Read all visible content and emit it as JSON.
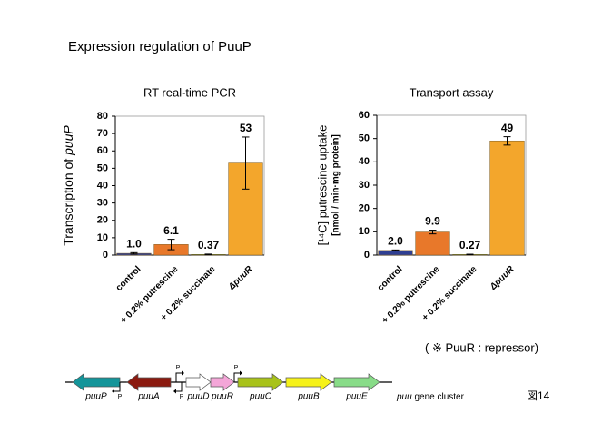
{
  "title": "Expression regulation of PuuP",
  "chart_data": [
    {
      "type": "bar",
      "title": "RT real-time PCR",
      "ylabel": [
        "Transcription of ",
        "puuP"
      ],
      "categories": [
        "control",
        "+ 0.2% putrescine",
        "+ 0.2% succinate",
        "ΔpuuR"
      ],
      "values": [
        1.0,
        6.1,
        0.37,
        53
      ],
      "value_labels": [
        "1.0",
        "6.1",
        "0.37",
        "53"
      ],
      "errors": [
        0.4,
        3,
        0.2,
        15
      ],
      "colors": [
        "#2f3f92",
        "#e8782a",
        "#2a8c3c",
        "#f3a62c"
      ],
      "ylim": [
        0,
        80
      ],
      "yticks": [
        0,
        10,
        20,
        30,
        40,
        50,
        60,
        70,
        80
      ]
    },
    {
      "type": "bar",
      "title": "Transport assay",
      "ylabel": [
        "[¹⁴C] putrescine uptake",
        "[nmol / min·mg protein]"
      ],
      "categories": [
        "control",
        "+ 0.2% putrescine",
        "+ 0.2% succinate",
        "ΔpuuR"
      ],
      "values": [
        2.0,
        9.9,
        0.27,
        49
      ],
      "value_labels": [
        "2.0",
        "9.9",
        "0.27",
        "49"
      ],
      "errors": [
        0.2,
        0.8,
        0.1,
        1.8
      ],
      "colors": [
        "#2f3f92",
        "#e8782a",
        "#2a8c3c",
        "#f3a62c"
      ],
      "ylim": [
        0,
        60
      ],
      "yticks": [
        0,
        10,
        20,
        30,
        40,
        50,
        60
      ]
    }
  ],
  "note": "( ※ PuuR : repressor)",
  "genes": [
    "puuP",
    "puuA",
    "puuD",
    "puuR",
    "puuC",
    "puuB",
    "puuE"
  ],
  "promoter": "P",
  "cluster_label": [
    "puu",
    " gene cluster"
  ],
  "figure_label": "図14"
}
